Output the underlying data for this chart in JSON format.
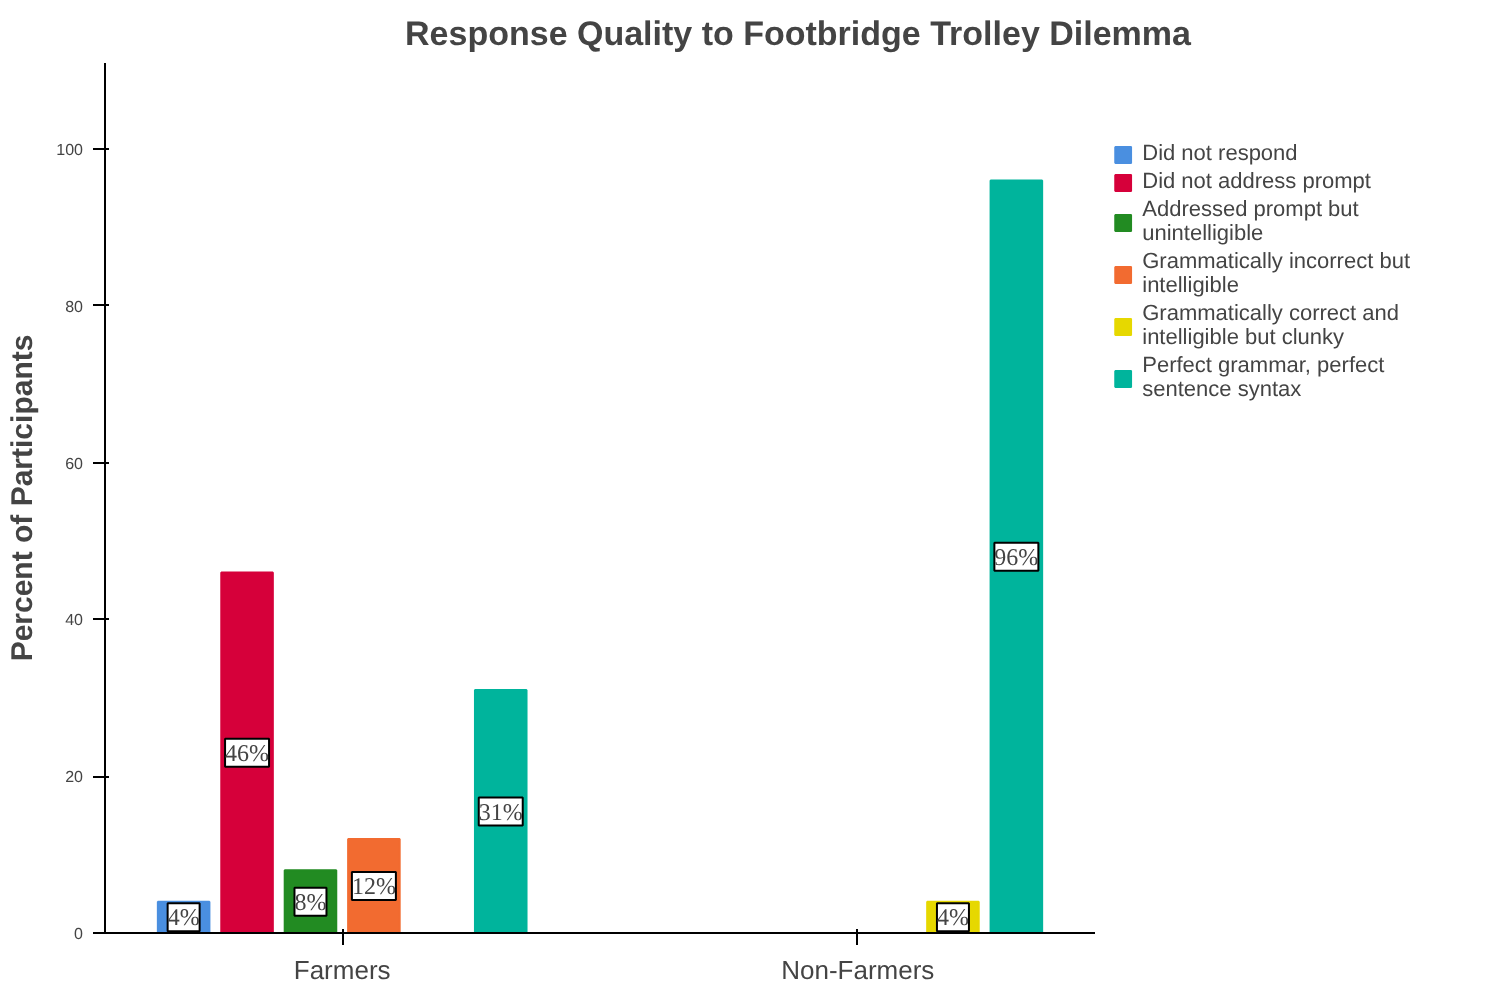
{
  "chart_data": {
    "type": "bar",
    "title": "Response Quality to Footbridge Trolley Dilemma",
    "ylabel": "Percent of Participants",
    "categories": [
      "Farmers",
      "Non-Farmers"
    ],
    "series": [
      {
        "name": "Did not respond",
        "color": "#4a8fe0",
        "values": [
          4,
          null
        ],
        "value_labels": [
          "4%",
          null
        ]
      },
      {
        "name": "Did not address prompt",
        "color": "#d6003a",
        "values": [
          46,
          null
        ],
        "value_labels": [
          "46%",
          null
        ]
      },
      {
        "name": "Addressed prompt but unintelligible",
        "color": "#228b22",
        "values": [
          8,
          null
        ],
        "value_labels": [
          "8%",
          null
        ]
      },
      {
        "name": "Grammatically incorrect but intelligible",
        "color": "#f26b30",
        "values": [
          12,
          null
        ],
        "value_labels": [
          "12%",
          null
        ]
      },
      {
        "name": "Grammatically correct and intelligible but clunky",
        "color": "#e6d800",
        "values": [
          null,
          4
        ],
        "value_labels": [
          null,
          "4%"
        ]
      },
      {
        "name": "Perfect grammar, perfect sentence syntax",
        "color": "#00b49c",
        "values": [
          31,
          96
        ],
        "value_labels": [
          "31%",
          "96%"
        ]
      }
    ],
    "ylim": [
      0,
      111
    ],
    "yticks": [
      0,
      20,
      40,
      60,
      80,
      100
    ],
    "grid": false,
    "legend": "right"
  }
}
